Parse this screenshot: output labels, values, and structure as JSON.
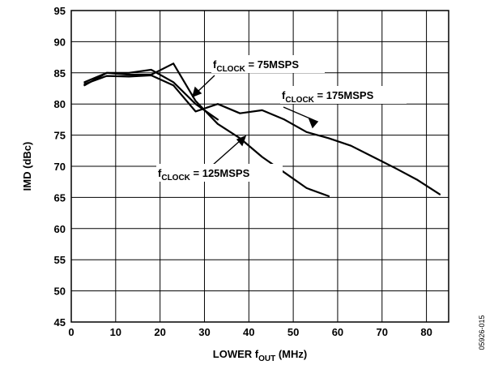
{
  "chart_data": {
    "type": "line",
    "xlabel": {
      "main": "LOWER f",
      "sub": "OUT",
      "tail": " (MHz)"
    },
    "ylabel": "IMD (dBc)",
    "xlim": [
      0,
      85
    ],
    "ylim": [
      45,
      95
    ],
    "x_ticks": [
      0,
      10,
      20,
      30,
      40,
      50,
      60,
      70,
      80
    ],
    "y_ticks": [
      45,
      50,
      55,
      60,
      65,
      70,
      75,
      80,
      85,
      90,
      95
    ],
    "grid": true,
    "series": [
      {
        "name": "fCLOCK = 75MSPS",
        "x": [
          3,
          8,
          13,
          18,
          23,
          28,
          33
        ],
        "y": [
          83.5,
          85.0,
          85.0,
          85.5,
          83.5,
          80.0,
          77.5
        ]
      },
      {
        "name": "fCLOCK = 125MSPS",
        "x": [
          3,
          8,
          13,
          18,
          23,
          28,
          33,
          38,
          43,
          48,
          53,
          58
        ],
        "y": [
          83.0,
          85.0,
          84.7,
          84.7,
          86.5,
          80.5,
          76.8,
          74.5,
          71.5,
          69.0,
          66.5,
          65.2
        ]
      },
      {
        "name": "fCLOCK = 175MSPS",
        "x": [
          3,
          8,
          13,
          18,
          23,
          28,
          33,
          38,
          43,
          48,
          53,
          58,
          63,
          68,
          73,
          78,
          83
        ],
        "y": [
          83.2,
          84.5,
          84.4,
          84.6,
          83.0,
          78.8,
          80.0,
          78.5,
          79.0,
          77.5,
          75.5,
          74.5,
          73.3,
          71.5,
          69.7,
          67.8,
          65.5
        ]
      }
    ],
    "annotations": [
      {
        "main": "f",
        "sub": "CLOCK",
        "tail": " = 75MSPS"
      },
      {
        "main": "f",
        "sub": "CLOCK",
        "tail": " = 175MSPS"
      },
      {
        "main": "f",
        "sub": "CLOCK",
        "tail": " = 125MSPS"
      }
    ],
    "figure_id": "05926-015"
  }
}
